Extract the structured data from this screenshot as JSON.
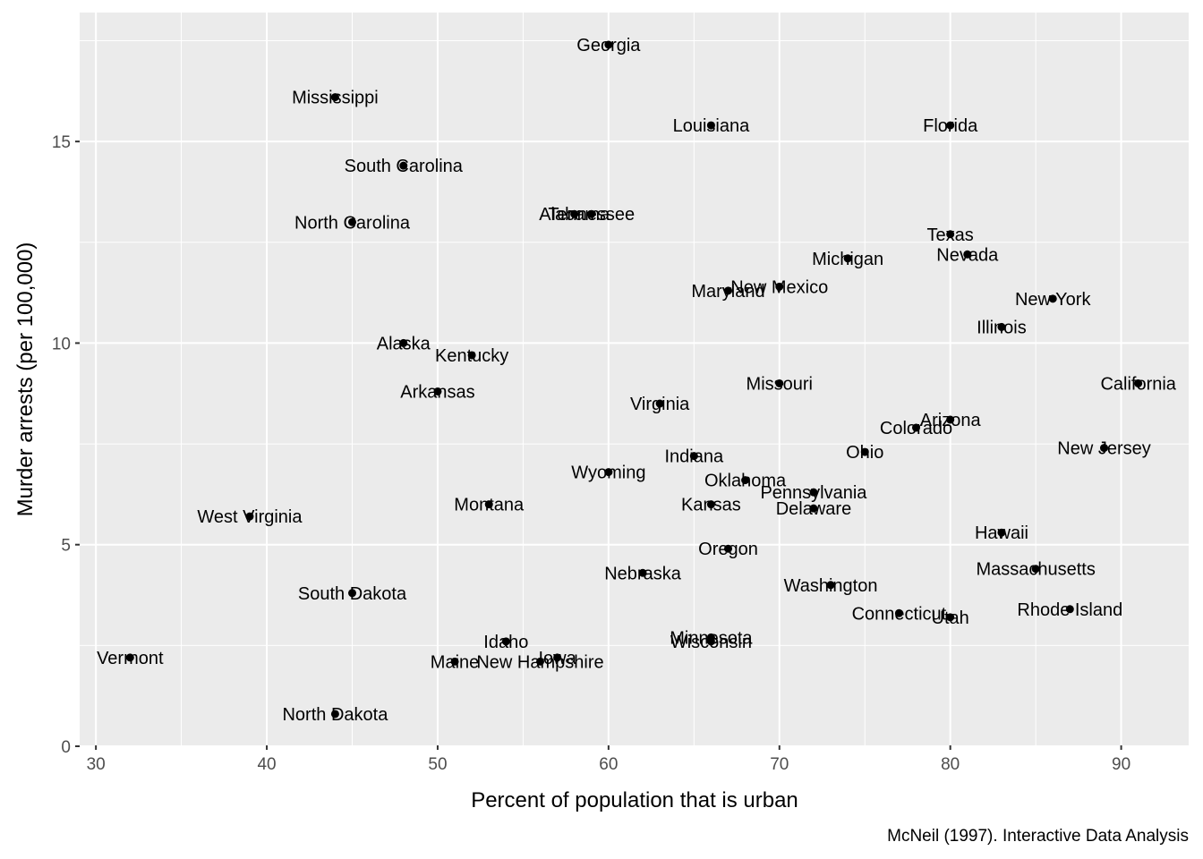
{
  "chart_data": {
    "type": "scatter",
    "xlabel": "Percent of population that is urban",
    "ylabel": "Murder arrests (per 100,000)",
    "caption": "McNeil (1997). Interactive Data Analysis",
    "xlim": [
      29.05,
      93.95
    ],
    "ylim": [
      0,
      17.4
    ],
    "x_ticks": [
      30,
      40,
      50,
      60,
      70,
      80,
      90
    ],
    "y_ticks": [
      0,
      5,
      10,
      15
    ],
    "x_tick_labels": [
      "30",
      "40",
      "50",
      "60",
      "70",
      "80",
      "90"
    ],
    "y_tick_labels": [
      "0",
      "5",
      "10",
      "15"
    ],
    "grid": true,
    "panel_background": "#EBEBEB",
    "grid_color": "#FFFFFF",
    "point_color": "#000000",
    "points": [
      {
        "label": "Alabama",
        "x": 58,
        "y": 13.2
      },
      {
        "label": "Alaska",
        "x": 48,
        "y": 10.0
      },
      {
        "label": "Arizona",
        "x": 80,
        "y": 8.1
      },
      {
        "label": "Arkansas",
        "x": 50,
        "y": 8.8
      },
      {
        "label": "California",
        "x": 91,
        "y": 9.0
      },
      {
        "label": "Colorado",
        "x": 78,
        "y": 7.9
      },
      {
        "label": "Connecticut",
        "x": 77,
        "y": 3.3
      },
      {
        "label": "Delaware",
        "x": 72,
        "y": 5.9
      },
      {
        "label": "Florida",
        "x": 80,
        "y": 15.4
      },
      {
        "label": "Georgia",
        "x": 60,
        "y": 17.4
      },
      {
        "label": "Hawaii",
        "x": 83,
        "y": 5.3
      },
      {
        "label": "Idaho",
        "x": 54,
        "y": 2.6
      },
      {
        "label": "Illinois",
        "x": 83,
        "y": 10.4
      },
      {
        "label": "Indiana",
        "x": 65,
        "y": 7.2
      },
      {
        "label": "Iowa",
        "x": 57,
        "y": 2.2
      },
      {
        "label": "Kansas",
        "x": 66,
        "y": 6.0
      },
      {
        "label": "Kentucky",
        "x": 52,
        "y": 9.7
      },
      {
        "label": "Louisiana",
        "x": 66,
        "y": 15.4
      },
      {
        "label": "Maine",
        "x": 51,
        "y": 2.1
      },
      {
        "label": "Maryland",
        "x": 67,
        "y": 11.3
      },
      {
        "label": "Massachusetts",
        "x": 85,
        "y": 4.4
      },
      {
        "label": "Michigan",
        "x": 74,
        "y": 12.1
      },
      {
        "label": "Minnesota",
        "x": 66,
        "y": 2.7
      },
      {
        "label": "Mississippi",
        "x": 44,
        "y": 16.1
      },
      {
        "label": "Missouri",
        "x": 70,
        "y": 9.0
      },
      {
        "label": "Montana",
        "x": 53,
        "y": 6.0
      },
      {
        "label": "Nebraska",
        "x": 62,
        "y": 4.3
      },
      {
        "label": "Nevada",
        "x": 81,
        "y": 12.2
      },
      {
        "label": "New Hampshire",
        "x": 56,
        "y": 2.1
      },
      {
        "label": "New Jersey",
        "x": 89,
        "y": 7.4
      },
      {
        "label": "New Mexico",
        "x": 70,
        "y": 11.4
      },
      {
        "label": "New York",
        "x": 86,
        "y": 11.1
      },
      {
        "label": "North Carolina",
        "x": 45,
        "y": 13.0
      },
      {
        "label": "North Dakota",
        "x": 44,
        "y": 0.8
      },
      {
        "label": "Ohio",
        "x": 75,
        "y": 7.3
      },
      {
        "label": "Oklahoma",
        "x": 68,
        "y": 6.6
      },
      {
        "label": "Oregon",
        "x": 67,
        "y": 4.9
      },
      {
        "label": "Pennsylvania",
        "x": 72,
        "y": 6.3
      },
      {
        "label": "Rhode Island",
        "x": 87,
        "y": 3.4
      },
      {
        "label": "South Carolina",
        "x": 48,
        "y": 14.4
      },
      {
        "label": "South Dakota",
        "x": 45,
        "y": 3.8
      },
      {
        "label": "Tennessee",
        "x": 59,
        "y": 13.2
      },
      {
        "label": "Texas",
        "x": 80,
        "y": 12.7
      },
      {
        "label": "Utah",
        "x": 80,
        "y": 3.2
      },
      {
        "label": "Vermont",
        "x": 32,
        "y": 2.2
      },
      {
        "label": "Virginia",
        "x": 63,
        "y": 8.5
      },
      {
        "label": "Washington",
        "x": 73,
        "y": 4.0
      },
      {
        "label": "West Virginia",
        "x": 39,
        "y": 5.7
      },
      {
        "label": "Wisconsin",
        "x": 66,
        "y": 2.6
      },
      {
        "label": "Wyoming",
        "x": 60,
        "y": 6.8
      }
    ]
  }
}
